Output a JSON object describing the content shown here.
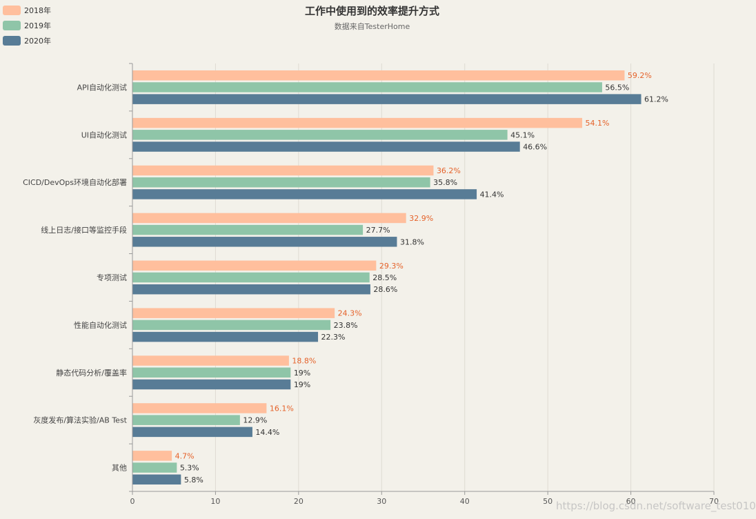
{
  "colors": {
    "2018": "#ffbf9d",
    "2019": "#8fc5a8",
    "2020": "#587c96",
    "label_2018": "#e5622a",
    "label_other": "#333333",
    "grid": "#dedbd2",
    "axis": "#999999"
  },
  "watermark": "https://blog.csdn.net/software_test010",
  "chart_data": {
    "type": "bar",
    "orientation": "horizontal",
    "title": "工作中使用到的效率提升方式",
    "subtitle": "数据来自TesterHome",
    "categories": [
      "API自动化测试",
      "UI自动化测试",
      "CICD/DevOps环境自动化部署",
      "线上日志/接口等监控手段",
      "专项测试",
      "性能自动化测试",
      "静态代码分析/覆盖率",
      "灰度发布/算法实验/AB Test",
      "其他"
    ],
    "series": [
      {
        "name": "2018年",
        "values": [
          59.2,
          54.1,
          36.2,
          32.9,
          29.3,
          24.3,
          18.8,
          16.1,
          4.7
        ],
        "labels": [
          "59.2%",
          "54.1%",
          "36.2%",
          "32.9%",
          "29.3%",
          "24.3%",
          "18.8%",
          "16.1%",
          "4.7%"
        ]
      },
      {
        "name": "2019年",
        "values": [
          56.5,
          45.1,
          35.8,
          27.7,
          28.5,
          23.8,
          19,
          12.9,
          5.3
        ],
        "labels": [
          "56.5%",
          "45.1%",
          "35.8%",
          "27.7%",
          "28.5%",
          "23.8%",
          "19%",
          "12.9%",
          "5.3%"
        ]
      },
      {
        "name": "2020年",
        "values": [
          61.2,
          46.6,
          41.4,
          31.8,
          28.6,
          22.3,
          19,
          14.4,
          5.8
        ],
        "labels": [
          "61.2%",
          "46.6%",
          "41.4%",
          "31.8%",
          "28.6%",
          "22.3%",
          "19%",
          "14.4%",
          "5.8%"
        ]
      }
    ],
    "xlim": [
      0,
      70
    ],
    "xticks": [
      0,
      10,
      20,
      30,
      40,
      50,
      60,
      70
    ],
    "xtick_labels": [
      "0",
      "10",
      "20",
      "30",
      "40",
      "50",
      "60",
      "70"
    ],
    "grid": true,
    "legend_position": "top-left"
  }
}
